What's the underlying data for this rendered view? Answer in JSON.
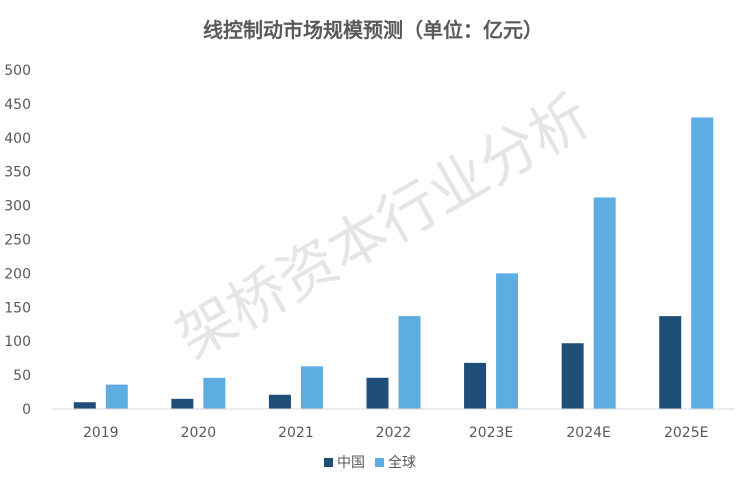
{
  "chart_data": {
    "type": "bar",
    "title": "线控制动市场规模预测（单位：亿元）",
    "categories": [
      "2019",
      "2020",
      "2021",
      "2022",
      "2023E",
      "2024E",
      "2025E"
    ],
    "series": [
      {
        "name": "中国",
        "color": "#1f4e79",
        "values": [
          10,
          15,
          21,
          46,
          68,
          97,
          137
        ]
      },
      {
        "name": "全球",
        "color": "#5dade2",
        "values": [
          36,
          46,
          63,
          137,
          200,
          312,
          430
        ]
      }
    ],
    "ylim": [
      0,
      500
    ],
    "yticks": [
      "0",
      "50",
      "100",
      "150",
      "200",
      "250",
      "300",
      "350",
      "400",
      "450",
      "500"
    ],
    "legend_position": "bottom",
    "grid": false,
    "watermark": "架桥资本行业分析"
  }
}
